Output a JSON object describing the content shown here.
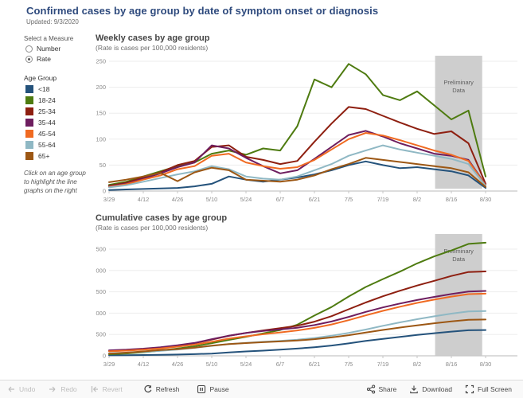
{
  "header": {
    "title": "Confirmed cases by age group by date of symptom onset or diagnosis",
    "updated": "Updated: 9/3/2020"
  },
  "sidebar": {
    "measure_label": "Select a Measure",
    "measure_options": [
      {
        "label": "Number",
        "selected": false
      },
      {
        "label": "Rate",
        "selected": true
      }
    ],
    "legend_title": "Age Group",
    "note": "Click on an age group to highlight the line graphs on the right"
  },
  "colors": {
    "title": "#2e4a7d",
    "grid": "#ededed",
    "axis": "#b9b9b9",
    "tick_text": "#8a8a8a"
  },
  "footer": {
    "undo": "Undo",
    "redo": "Redo",
    "revert": "Revert",
    "refresh": "Refresh",
    "pause": "Pause",
    "share": "Share",
    "download": "Download",
    "fullscreen": "Full Screen"
  },
  "chart_data": [
    {
      "id": "weekly",
      "type": "line",
      "title": "Weekly cases by age group",
      "subtitle": "(Rate is cases per 100,000 residents)",
      "x": [
        "3/29",
        "4/5",
        "4/12",
        "4/19",
        "4/26",
        "5/3",
        "5/10",
        "5/17",
        "5/24",
        "5/31",
        "6/7",
        "6/14",
        "6/21",
        "6/28",
        "7/5",
        "7/12",
        "7/19",
        "7/26",
        "8/2",
        "8/9",
        "8/16",
        "8/23",
        "8/30"
      ],
      "x_tick_labels": [
        "3/29",
        "4/12",
        "4/26",
        "5/10",
        "5/24",
        "6/7",
        "6/21",
        "7/5",
        "7/19",
        "8/2",
        "8/16",
        "8/30"
      ],
      "ylim": [
        0,
        260
      ],
      "y_ticks": [
        0,
        50,
        100,
        150,
        200,
        250
      ],
      "y_tick_labels": [
        "0",
        "50",
        "100",
        "150",
        "200",
        "250"
      ],
      "grid": true,
      "legend_position": "left",
      "annotation": {
        "label": "Preliminary Data",
        "color": "#c9c9c9",
        "start_index": 19.05,
        "end_index": 21.8
      },
      "series": [
        {
          "name": "<18",
          "color": "#24527b",
          "values": [
            2,
            3,
            4,
            5,
            6,
            9,
            14,
            28,
            22,
            18,
            22,
            26,
            32,
            40,
            50,
            57,
            50,
            44,
            46,
            42,
            38,
            30,
            6
          ]
        },
        {
          "name": "18-24",
          "color": "#4e7b10",
          "values": [
            12,
            18,
            28,
            38,
            48,
            55,
            72,
            78,
            70,
            82,
            78,
            125,
            215,
            200,
            245,
            225,
            185,
            175,
            192,
            165,
            138,
            155,
            28
          ]
        },
        {
          "name": "25-34",
          "color": "#8e1f10",
          "values": [
            10,
            16,
            26,
            36,
            50,
            58,
            85,
            88,
            66,
            60,
            52,
            58,
            95,
            130,
            162,
            158,
            145,
            132,
            120,
            110,
            115,
            92,
            14
          ]
        },
        {
          "name": "35-44",
          "color": "#6e1e5f",
          "values": [
            9,
            14,
            24,
            34,
            46,
            55,
            88,
            82,
            64,
            48,
            34,
            40,
            62,
            85,
            108,
            116,
            105,
            92,
            82,
            72,
            68,
            60,
            12
          ]
        },
        {
          "name": "45-54",
          "color": "#f06a21",
          "values": [
            8,
            13,
            22,
            30,
            42,
            48,
            68,
            72,
            55,
            48,
            43,
            46,
            60,
            80,
            100,
            112,
            107,
            98,
            88,
            78,
            70,
            58,
            11
          ]
        },
        {
          "name": "55-64",
          "color": "#8fb8c4",
          "values": [
            7,
            11,
            18,
            25,
            32,
            38,
            48,
            42,
            28,
            24,
            22,
            28,
            40,
            52,
            68,
            78,
            88,
            80,
            74,
            68,
            62,
            52,
            10
          ]
        },
        {
          "name": "65+",
          "color": "#9c5714",
          "values": [
            17,
            22,
            28,
            35,
            19,
            36,
            45,
            40,
            22,
            20,
            18,
            22,
            30,
            42,
            52,
            64,
            60,
            56,
            52,
            48,
            44,
            36,
            8
          ]
        }
      ]
    },
    {
      "id": "cumulative",
      "type": "line",
      "title": "Cumulative cases by age group",
      "subtitle": "(Rate is cases per 100,000 residents)",
      "x": [
        "3/29",
        "4/5",
        "4/12",
        "4/19",
        "4/26",
        "5/3",
        "5/10",
        "5/17",
        "5/24",
        "5/31",
        "6/7",
        "6/14",
        "6/21",
        "6/28",
        "7/5",
        "7/12",
        "7/19",
        "7/26",
        "8/2",
        "8/9",
        "8/16",
        "8/23",
        "8/30"
      ],
      "x_tick_labels": [
        "3/29",
        "4/12",
        "4/26",
        "5/10",
        "5/24",
        "6/7",
        "6/21",
        "7/5",
        "7/19",
        "8/2",
        "8/16",
        "8/30"
      ],
      "ylim": [
        0,
        2800
      ],
      "y_ticks": [
        0,
        500,
        1000,
        1500,
        2000,
        2500
      ],
      "y_tick_labels": [
        "0",
        "500",
        "1,000",
        "1,500",
        "2,000",
        "2,500"
      ],
      "grid": true,
      "legend_position": "left",
      "annotation": {
        "label": "Preliminary Data",
        "color": "#c9c9c9",
        "start_index": 19.05,
        "end_index": 21.8
      },
      "series": [
        {
          "name": "<18",
          "color": "#24527b",
          "values": [
            12,
            15,
            19,
            24,
            30,
            39,
            53,
            81,
            103,
            121,
            143,
            169,
            201,
            241,
            291,
            348,
            398,
            442,
            488,
            530,
            568,
            598,
            604
          ]
        },
        {
          "name": "18-24",
          "color": "#4e7b10",
          "values": [
            37,
            55,
            83,
            121,
            169,
            224,
            296,
            374,
            444,
            526,
            604,
            729,
            944,
            1144,
            1389,
            1614,
            1799,
            1974,
            2166,
            2331,
            2469,
            2624,
            2652
          ]
        },
        {
          "name": "25-34",
          "color": "#8e1f10",
          "values": [
            110,
            126,
            152,
            188,
            238,
            296,
            381,
            469,
            535,
            595,
            647,
            705,
            800,
            930,
            1092,
            1250,
            1395,
            1527,
            1647,
            1757,
            1872,
            1964,
            1978
          ]
        },
        {
          "name": "35-44",
          "color": "#6e1e5f",
          "values": [
            129,
            143,
            167,
            201,
            247,
            302,
            390,
            472,
            536,
            584,
            618,
            658,
            720,
            805,
            913,
            1029,
            1134,
            1226,
            1308,
            1380,
            1448,
            1508,
            1520
          ]
        },
        {
          "name": "45-54",
          "color": "#f06a21",
          "values": [
            108,
            121,
            143,
            173,
            215,
            263,
            331,
            403,
            458,
            506,
            549,
            595,
            655,
            735,
            835,
            947,
            1054,
            1152,
            1240,
            1318,
            1388,
            1446,
            1457
          ]
        },
        {
          "name": "55-64",
          "color": "#8fb8c4",
          "values": [
            62,
            73,
            91,
            116,
            148,
            186,
            234,
            276,
            304,
            328,
            350,
            378,
            418,
            470,
            538,
            616,
            704,
            784,
            858,
            926,
            988,
            1040,
            1050
          ]
        },
        {
          "name": "65+",
          "color": "#9c5714",
          "values": [
            52,
            74,
            102,
            137,
            156,
            192,
            237,
            277,
            299,
            319,
            337,
            359,
            389,
            431,
            483,
            547,
            607,
            663,
            715,
            763,
            807,
            843,
            851
          ]
        }
      ]
    }
  ]
}
